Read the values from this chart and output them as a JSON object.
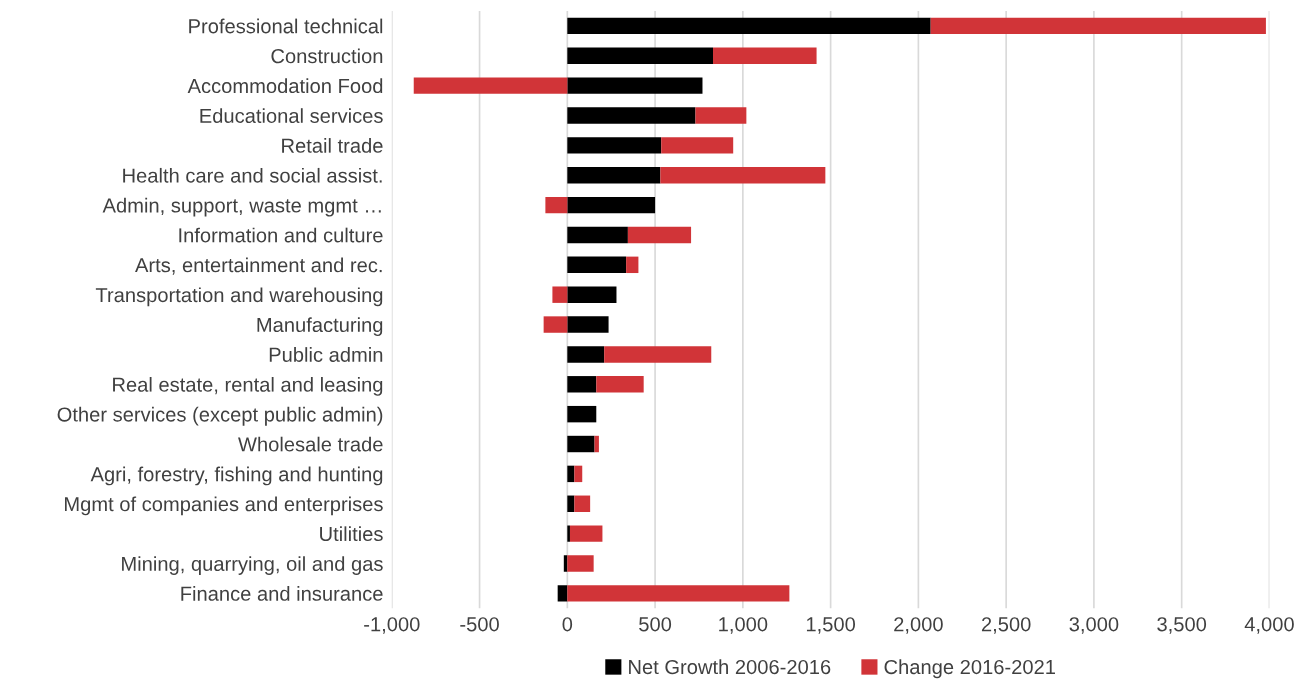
{
  "chart_data": {
    "type": "bar",
    "orientation": "horizontal",
    "stacked": true,
    "categories": [
      "Professional technical",
      "Construction",
      "Accommodation Food",
      "Educational services",
      "Retail trade",
      "Health care and social assist.",
      "Admin, support, waste mgmt …",
      "Information and culture",
      "Arts, entertainment and rec.",
      "Transportation and warehousing",
      "Manufacturing",
      "Public admin",
      "Real estate, rental and leasing",
      "Other services (except public admin)",
      "Wholesale trade",
      "Agri, forestry, fishing and hunting",
      "Mgmt of companies and enterprises",
      "Utilities",
      "Mining, quarrying, oil and gas",
      "Finance and insurance"
    ],
    "series": [
      {
        "name": "Net Growth 2006-2016",
        "color": "#000000",
        "values": [
          2070,
          830,
          770,
          730,
          535,
          530,
          500,
          345,
          335,
          280,
          235,
          210,
          165,
          165,
          155,
          40,
          40,
          15,
          -20,
          -55
        ]
      },
      {
        "name": "Change 2016-2021",
        "color": "#d13438",
        "values": [
          1910,
          590,
          -875,
          290,
          410,
          940,
          -125,
          360,
          70,
          -85,
          -135,
          610,
          270,
          0,
          25,
          45,
          90,
          185,
          150,
          1265
        ]
      }
    ],
    "xlim": [
      -1000,
      4000
    ],
    "xticks": [
      {
        "value": -1000,
        "label": "-1,000"
      },
      {
        "value": -500,
        "label": "-500"
      },
      0,
      500,
      {
        "value": 1000,
        "label": "1,000"
      },
      {
        "value": 1500,
        "label": "1,500"
      },
      {
        "value": 2000,
        "label": "2,000"
      },
      {
        "value": 2500,
        "label": "2,500"
      },
      {
        "value": 3000,
        "label": "3,000"
      },
      {
        "value": 3500,
        "label": "3,500"
      },
      {
        "value": 4000,
        "label": "4,000"
      }
    ],
    "grid": "x",
    "legend": "bottom"
  }
}
